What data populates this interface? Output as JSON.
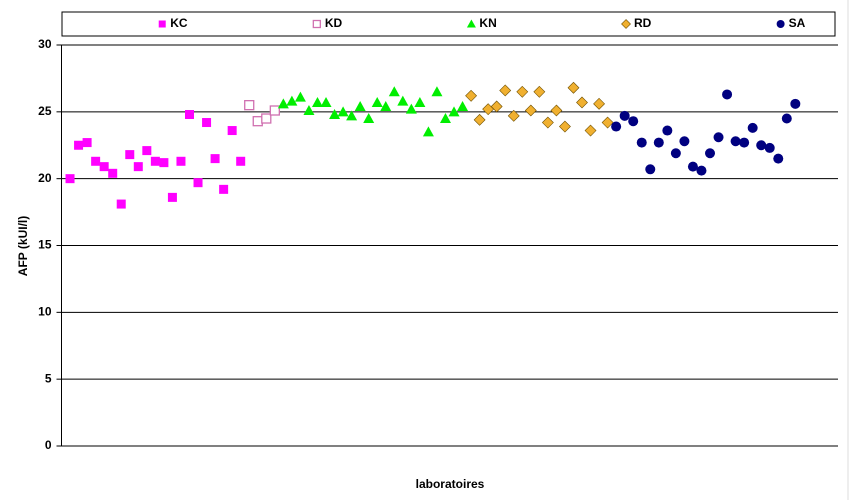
{
  "chart_data": {
    "type": "scatter",
    "x_label": "laboratoires",
    "y_label": "AFP (kUI/l)",
    "xlim": [
      0,
      91
    ],
    "ylim": [
      0,
      30
    ],
    "yticks": [
      0,
      5,
      10,
      15,
      20,
      25,
      30
    ],
    "grid": true,
    "legend": "top",
    "series": [
      {
        "name": "KC",
        "color": "#ff00ff",
        "marker": "square",
        "x": [
          1,
          2,
          3,
          4,
          5,
          6,
          7,
          8,
          9,
          10,
          11,
          12,
          13,
          14,
          15,
          16,
          17,
          18,
          19,
          20,
          21
        ],
        "values": [
          20.0,
          22.5,
          22.7,
          21.3,
          20.9,
          20.4,
          18.1,
          21.8,
          20.9,
          22.1,
          21.3,
          21.2,
          18.6,
          21.3,
          24.8,
          19.7,
          24.2,
          21.5,
          19.2,
          23.6,
          21.3
        ]
      },
      {
        "name": "KD",
        "color": "#d070b0",
        "marker": "open-square",
        "x": [
          22,
          23,
          24,
          25
        ],
        "values": [
          25.5,
          24.3,
          24.5,
          25.1
        ]
      },
      {
        "name": "KN",
        "color": "#00ee00",
        "marker": "triangle",
        "x": [
          26,
          27,
          28,
          29,
          30,
          31,
          32,
          33,
          34,
          35,
          36,
          37,
          38,
          39,
          40,
          41,
          42,
          43,
          44,
          45,
          46,
          47
        ],
        "values": [
          25.6,
          25.8,
          26.1,
          25.1,
          25.7,
          25.7,
          24.8,
          25.0,
          24.7,
          25.4,
          24.5,
          25.7,
          25.4,
          26.5,
          25.8,
          25.2,
          25.7,
          23.5,
          26.5,
          24.5,
          25.0,
          25.4
        ]
      },
      {
        "name": "RD",
        "color": "#f0b030",
        "marker": "diamond",
        "x": [
          48,
          49,
          50,
          51,
          52,
          53,
          54,
          55,
          56,
          57,
          58,
          59,
          60,
          61,
          62,
          63,
          64
        ],
        "values": [
          26.2,
          24.4,
          25.2,
          25.4,
          26.6,
          24.7,
          26.5,
          25.1,
          26.5,
          24.2,
          25.1,
          23.9,
          26.8,
          25.7,
          23.6,
          25.6,
          24.2
        ]
      },
      {
        "name": "SA",
        "color": "#000080",
        "marker": "circle",
        "x": [
          65,
          66,
          67,
          68,
          69,
          70,
          71,
          72,
          73,
          74,
          75,
          76,
          77,
          78,
          79,
          80,
          81,
          82,
          83,
          84,
          85,
          86
        ],
        "values": [
          23.9,
          24.7,
          24.3,
          22.7,
          20.7,
          22.7,
          23.6,
          21.9,
          22.8,
          20.9,
          20.6,
          21.9,
          23.1,
          26.3,
          22.8,
          22.7,
          23.8,
          22.5,
          22.3,
          21.5,
          24.5,
          25.6
        ]
      }
    ]
  }
}
